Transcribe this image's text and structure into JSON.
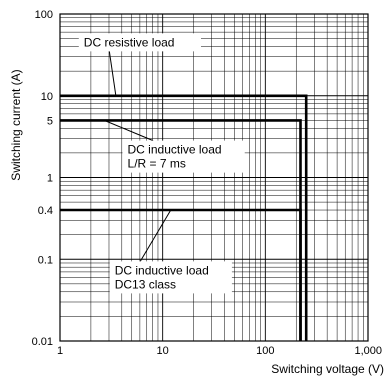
{
  "chart_data": {
    "type": "line",
    "xlabel": "Switching voltage (V)",
    "ylabel": "Switching current (A)",
    "x_scale": "log",
    "y_scale": "log",
    "xlim": [
      1,
      1000
    ],
    "ylim": [
      0.01,
      100
    ],
    "grid": true,
    "x_ticks": [
      {
        "value": 1,
        "label": "1"
      },
      {
        "value": 10,
        "label": "10"
      },
      {
        "value": 100,
        "label": "100"
      },
      {
        "value": 1000,
        "label": "1,000"
      }
    ],
    "y_ticks": [
      {
        "value": 0.01,
        "label": "0.01"
      },
      {
        "value": 0.1,
        "label": "0.1"
      },
      {
        "value": 0.4,
        "label": "0.4"
      },
      {
        "value": 1,
        "label": "1"
      },
      {
        "value": 5,
        "label": "5"
      },
      {
        "value": 10,
        "label": "10"
      },
      {
        "value": 100,
        "label": "100"
      }
    ],
    "series": [
      {
        "x": [
          1,
          250,
          250
        ],
        "y": [
          10,
          10,
          0.01
        ]
      },
      {
        "x": [
          1,
          220,
          220
        ],
        "y": [
          5,
          5,
          0.01
        ]
      },
      {
        "x": [
          1,
          220,
          220
        ],
        "y": [
          0.4,
          0.4,
          0.01
        ]
      }
    ],
    "annotations": [
      {
        "lines": [
          "DC resistive load"
        ],
        "x": 6,
        "y": 45,
        "target_x": 3.5,
        "target_y": 10
      },
      {
        "lines": [
          "DC inductive load",
          "L/R = 7 ms"
        ],
        "x": 16,
        "y": 1.8,
        "target_x": 2.7,
        "target_y": 5
      },
      {
        "lines": [
          "DC inductive load",
          "DC13 class"
        ],
        "x": 12,
        "y": 0.06,
        "target_x": 12,
        "target_y": 0.4
      }
    ]
  }
}
